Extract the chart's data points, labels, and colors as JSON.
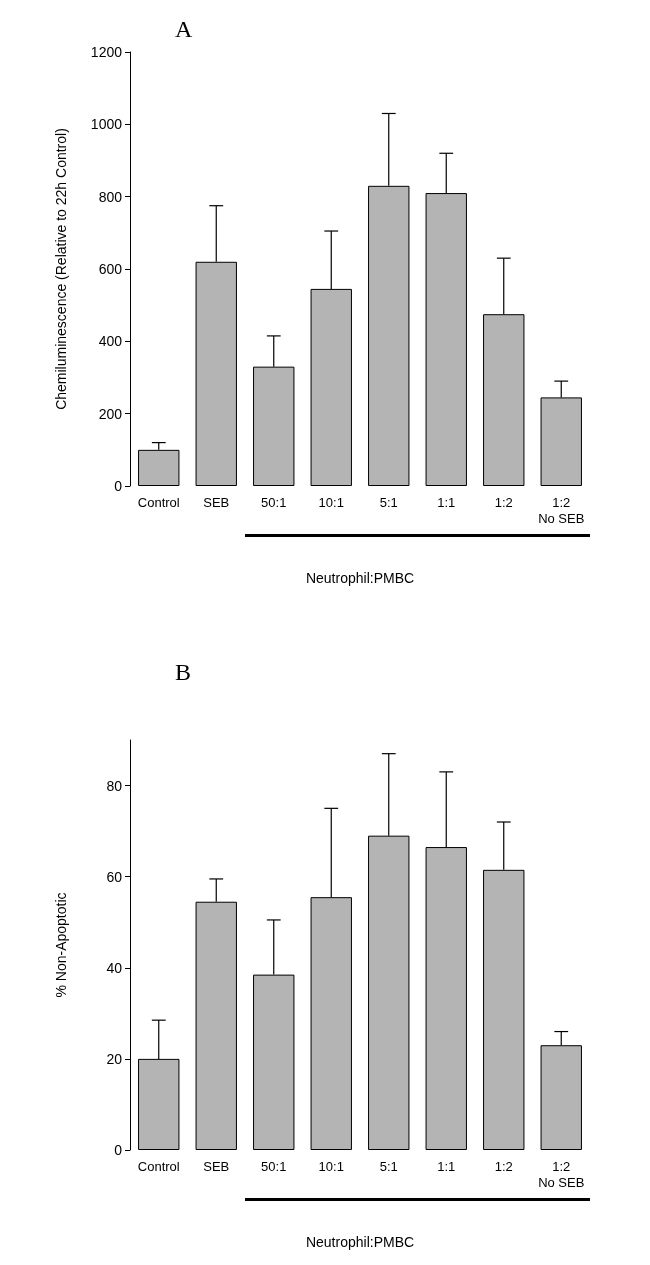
{
  "chart_data": [
    {
      "type": "bar",
      "title": "A",
      "ylabel": "Chemiluminescence (Relative to 22h Control)",
      "xlabel": "Neutrophil:PMBC",
      "categories": [
        "Control",
        "SEB",
        "50:1",
        "10:1",
        "5:1",
        "1:1",
        "1:2",
        "1:2\nNo SEB"
      ],
      "values": [
        100,
        620,
        330,
        545,
        830,
        810,
        475,
        245
      ],
      "errors": [
        [
          100,
          120
        ],
        [
          620,
          775
        ],
        [
          330,
          415
        ],
        [
          545,
          705
        ],
        [
          830,
          1030
        ],
        [
          810,
          920
        ],
        [
          475,
          630
        ],
        [
          245,
          290
        ]
      ],
      "color": "#b4b4b4",
      "ylim": [
        0,
        1200
      ],
      "yticks": [
        0,
        200,
        400,
        600,
        800,
        1000,
        1200
      ],
      "grid": false
    },
    {
      "type": "bar",
      "title": "B",
      "ylabel": "% Non-Apoptotic",
      "xlabel": "Neutrophil:PMBC",
      "categories": [
        "Control",
        "SEB",
        "50:1",
        "10:1",
        "5:1",
        "1:1",
        "1:2",
        "1:2\nNo SEB"
      ],
      "values": [
        20,
        54.5,
        38.5,
        55.5,
        69,
        66.5,
        61.5,
        23
      ],
      "errors": [
        [
          20,
          28.5
        ],
        [
          54.5,
          59.5
        ],
        [
          38.5,
          50.5
        ],
        [
          55.5,
          75
        ],
        [
          69,
          87
        ],
        [
          66.5,
          83
        ],
        [
          61.5,
          72
        ],
        [
          23,
          26
        ]
      ],
      "color": "#b4b4b4",
      "ylim": [
        0,
        90
      ],
      "yticks": [
        0,
        20,
        40,
        60,
        80
      ],
      "grid": false
    }
  ]
}
